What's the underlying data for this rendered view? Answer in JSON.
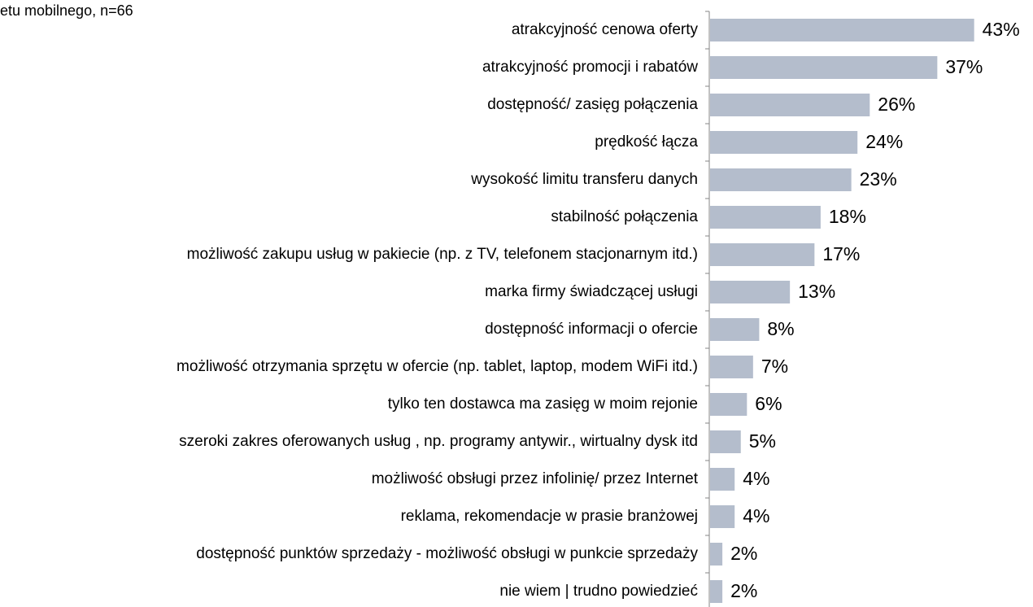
{
  "chart_data": {
    "type": "bar",
    "subtitle": "etu mobilnego, n=66",
    "categories": [
      "atrakcyjność cenowa oferty",
      "atrakcyjność promocji i rabatów",
      "dostępność/ zasięg połączenia",
      "prędkość łącza",
      "wysokość limitu transferu danych",
      "stabilność połączenia",
      "możliwość zakupu usług w pakiecie (np. z TV, telefonem stacjonarnym itd.)",
      "marka firmy świadczącej usługi",
      "dostępność informacji o ofercie",
      "możliwość otrzymania sprzętu w ofercie (np. tablet, laptop, modem WiFi itd.)",
      "tylko ten dostawca ma zasięg w moim rejonie",
      "szeroki zakres oferowanych usług , np. programy antywir., wirtualny dysk itd",
      "możliwość obsługi przez infolinię/ przez Internet",
      "reklama, rekomendacje w prasie branżowej",
      "dostępność punktów sprzedaży - możliwość obsługi w punkcie sprzedaży",
      "nie wiem | trudno powiedzieć"
    ],
    "values": [
      43,
      37,
      26,
      24,
      23,
      18,
      17,
      13,
      8,
      7,
      6,
      5,
      4,
      4,
      2,
      2
    ],
    "value_labels": [
      "43%",
      "37%",
      "26%",
      "24%",
      "23%",
      "18%",
      "17%",
      "13%",
      "8%",
      "7%",
      "6%",
      "5%",
      "4%",
      "4%",
      "2%",
      "2%"
    ],
    "color": "#b4bdcc"
  }
}
